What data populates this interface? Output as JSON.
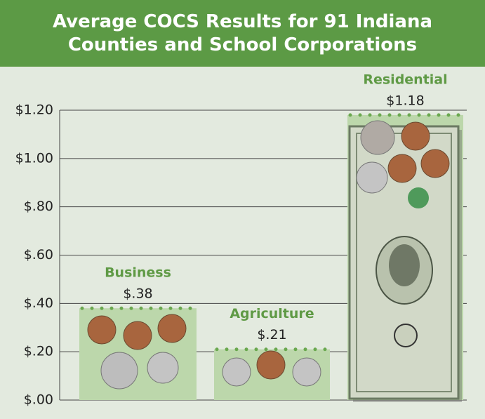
{
  "chart_data": {
    "type": "bar",
    "title": "Average COCS Results for 91 Indiana Counties and School Corporations",
    "categories": [
      "Business",
      "Agriculture",
      "Residential"
    ],
    "values": [
      0.38,
      0.21,
      1.18
    ],
    "value_labels": [
      "$.38",
      "$.21",
      "$1.18"
    ],
    "color": "#bcd7ab",
    "ylim": [
      0,
      1.2
    ],
    "yticks": [
      {
        "value": 0,
        "label": "$.00"
      },
      {
        "value": 0.2,
        "label": "$.20"
      },
      {
        "value": 0.4,
        "label": "$.40"
      },
      {
        "value": 0.6,
        "label": "$.60"
      },
      {
        "value": 0.8,
        "label": "$.80"
      },
      {
        "value": 1.0,
        "label": "$1.00"
      },
      {
        "value": 1.2,
        "label": "$1.20"
      }
    ],
    "grid": true
  }
}
